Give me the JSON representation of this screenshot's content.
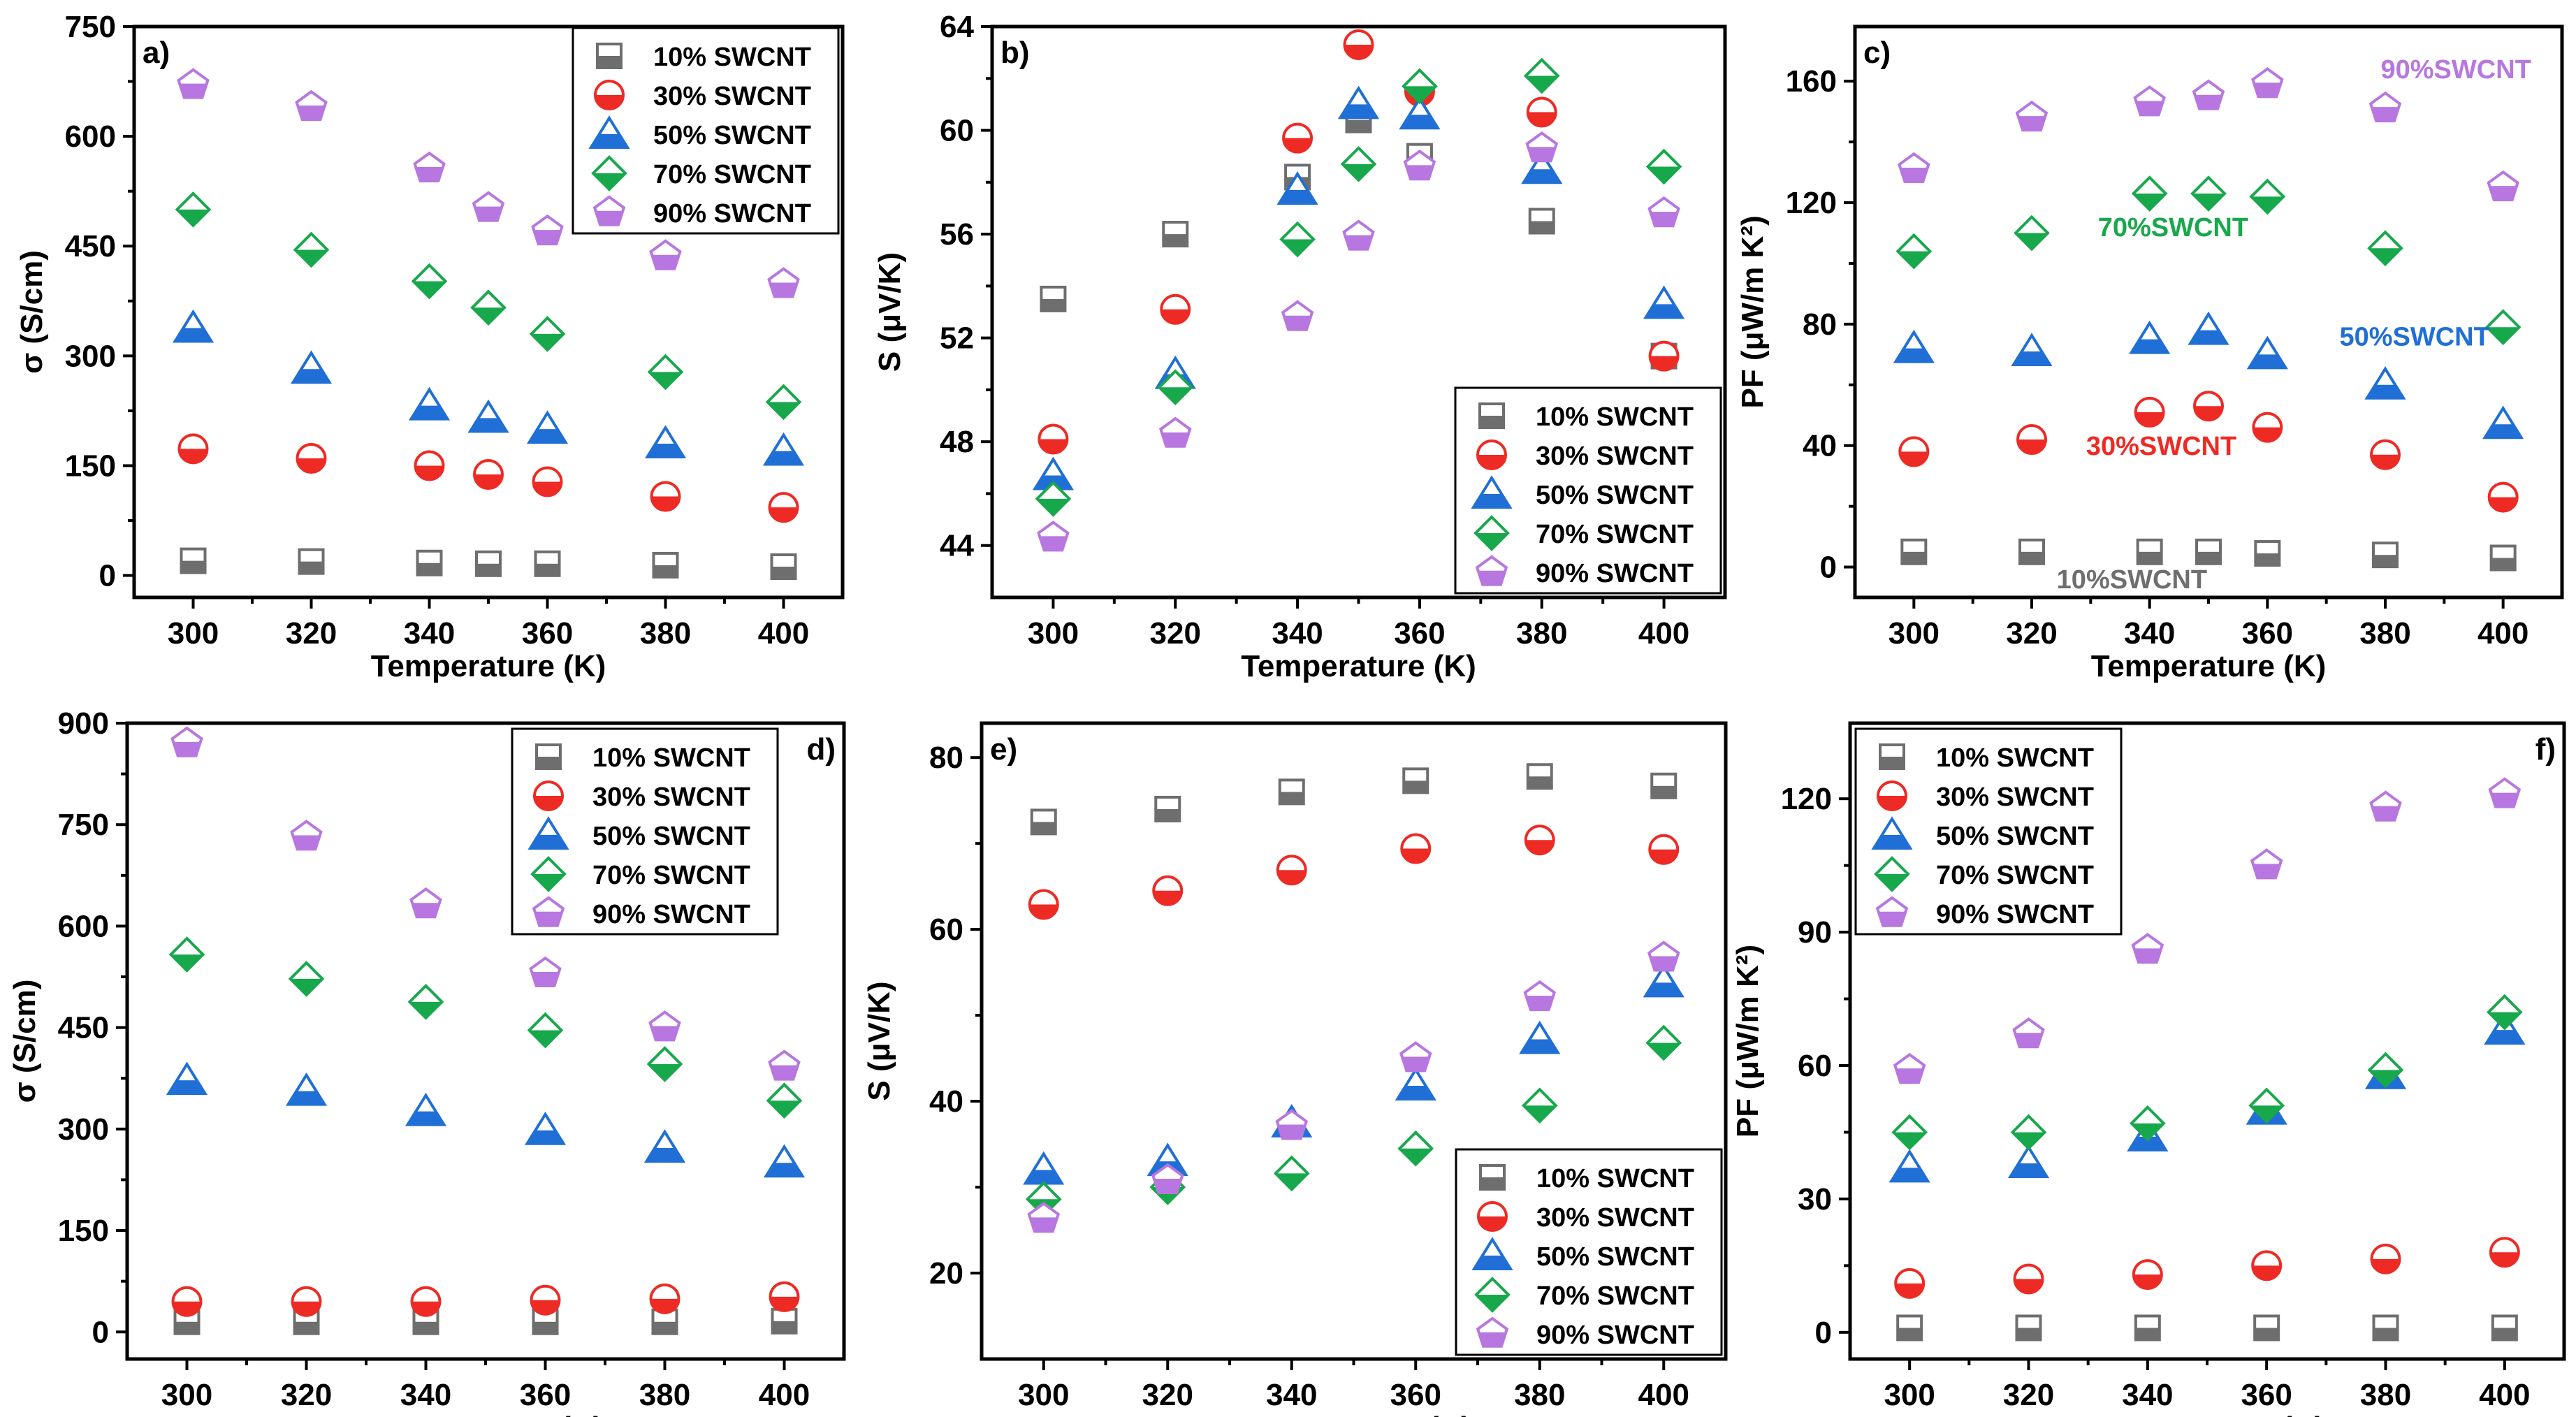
{
  "colors": {
    "s10": "#6e6e6e",
    "s30": "#ee2a24",
    "s50": "#1f6fd6",
    "s70": "#18a84c",
    "s90": "#b877e0"
  },
  "chart_data": [
    {
      "id": "a",
      "type": "scatter",
      "panel_label": "a)",
      "xlabel": "Temperature (K)",
      "ylabel": "σ (S/cm)",
      "xlim": [
        290,
        410
      ],
      "ylim": [
        -30,
        750
      ],
      "xticks": [
        300,
        320,
        340,
        360,
        380,
        400
      ],
      "yticks": [
        0,
        150,
        300,
        450,
        600,
        750
      ],
      "legend": "top-right",
      "series": [
        {
          "key": "s10",
          "name": "10% SWCNT",
          "marker": "square",
          "x": [
            300,
            320,
            340,
            350,
            360,
            380,
            400
          ],
          "y": [
            20,
            19,
            17,
            16,
            16,
            14,
            12
          ]
        },
        {
          "key": "s30",
          "name": "30% SWCNT",
          "marker": "circle",
          "x": [
            300,
            320,
            340,
            350,
            360,
            380,
            400
          ],
          "y": [
            173,
            160,
            150,
            138,
            128,
            108,
            93
          ]
        },
        {
          "key": "s50",
          "name": "50% SWCNT",
          "marker": "triangle",
          "x": [
            300,
            320,
            340,
            350,
            360,
            380,
            400
          ],
          "y": [
            338,
            282,
            232,
            215,
            200,
            180,
            170
          ]
        },
        {
          "key": "s70",
          "name": "70% SWCNT",
          "marker": "diamond",
          "x": [
            300,
            320,
            340,
            350,
            360,
            380,
            400
          ],
          "y": [
            500,
            445,
            402,
            366,
            330,
            278,
            237
          ]
        },
        {
          "key": "s90",
          "name": "90% SWCNT",
          "marker": "pentagon",
          "x": [
            300,
            320,
            340,
            350,
            360,
            380,
            400
          ],
          "y": [
            670,
            640,
            556,
            502,
            470,
            436,
            398
          ]
        }
      ]
    },
    {
      "id": "b",
      "type": "scatter",
      "panel_label": "b)",
      "xlabel": "Temperature (K)",
      "ylabel": "S (μV/K)",
      "xlim": [
        290,
        410
      ],
      "ylim": [
        42,
        64
      ],
      "xticks": [
        300,
        320,
        340,
        360,
        380,
        400
      ],
      "yticks": [
        44,
        48,
        52,
        56,
        60,
        64
      ],
      "legend": "bottom-right",
      "series": [
        {
          "key": "s10",
          "name": "10% SWCNT",
          "marker": "square",
          "x": [
            300,
            320,
            340,
            350,
            360,
            380,
            400
          ],
          "y": [
            53.5,
            56,
            58.2,
            60.4,
            59,
            56.5,
            51.3
          ]
        },
        {
          "key": "s30",
          "name": "30% SWCNT",
          "marker": "circle",
          "x": [
            300,
            320,
            340,
            350,
            360,
            380,
            400
          ],
          "y": [
            48.1,
            53.1,
            59.7,
            63.3,
            61.5,
            60.7,
            51.3
          ]
        },
        {
          "key": "s50",
          "name": "50% SWCNT",
          "marker": "triangle",
          "x": [
            300,
            320,
            340,
            350,
            360,
            380,
            400
          ],
          "y": [
            46.7,
            50.6,
            57.7,
            61,
            60.6,
            58.5,
            53.3
          ]
        },
        {
          "key": "s70",
          "name": "70% SWCNT",
          "marker": "diamond",
          "x": [
            300,
            320,
            340,
            350,
            360,
            380,
            400
          ],
          "y": [
            45.8,
            50.1,
            55.8,
            58.7,
            61.7,
            62.1,
            58.6
          ]
        },
        {
          "key": "s90",
          "name": "90% SWCNT",
          "marker": "pentagon",
          "x": [
            300,
            320,
            340,
            350,
            360,
            380,
            400
          ],
          "y": [
            44.3,
            48.3,
            52.8,
            55.9,
            58.6,
            59.3,
            56.8
          ]
        }
      ]
    },
    {
      "id": "c",
      "type": "scatter",
      "panel_label": "c)",
      "xlabel": "Temperature (K)",
      "ylabel": "PF (μW/m K²)",
      "xlim": [
        290,
        410
      ],
      "ylim": [
        -10,
        178
      ],
      "xticks": [
        300,
        320,
        340,
        360,
        380,
        400
      ],
      "yticks": [
        0,
        40,
        80,
        120,
        160
      ],
      "legend": "none",
      "annotations": [
        {
          "text": "90%SWCNT",
          "key": "s90",
          "x": 392,
          "y": 161
        },
        {
          "text": "70%SWCNT",
          "key": "s70",
          "x": 344,
          "y": 109
        },
        {
          "text": "50%SWCNT",
          "key": "s50",
          "x": 385,
          "y": 73
        },
        {
          "text": "30%SWCNT",
          "key": "s30",
          "x": 342,
          "y": 37
        },
        {
          "text": "10%SWCNT",
          "key": "s10",
          "x": 337,
          "y": -7
        }
      ],
      "series": [
        {
          "key": "s10",
          "name": "10% SWCNT",
          "marker": "square",
          "x": [
            300,
            320,
            340,
            350,
            360,
            380,
            400
          ],
          "y": [
            5,
            5,
            5,
            5,
            4.5,
            4,
            3
          ]
        },
        {
          "key": "s30",
          "name": "30% SWCNT",
          "marker": "circle",
          "x": [
            300,
            320,
            340,
            350,
            360,
            380,
            400
          ],
          "y": [
            38,
            42,
            51,
            53,
            46,
            37,
            23
          ]
        },
        {
          "key": "s50",
          "name": "50% SWCNT",
          "marker": "triangle",
          "x": [
            300,
            320,
            340,
            350,
            360,
            380,
            400
          ],
          "y": [
            72,
            71,
            75,
            78,
            70,
            60,
            47
          ]
        },
        {
          "key": "s70",
          "name": "70% SWCNT",
          "marker": "diamond",
          "x": [
            300,
            320,
            340,
            350,
            360,
            380,
            400
          ],
          "y": [
            104,
            110,
            123,
            123,
            122,
            105,
            79
          ]
        },
        {
          "key": "s90",
          "name": "90% SWCNT",
          "marker": "pentagon",
          "x": [
            300,
            320,
            340,
            350,
            360,
            380,
            400
          ],
          "y": [
            131,
            148,
            153,
            155,
            159,
            151,
            125
          ]
        }
      ]
    },
    {
      "id": "d",
      "type": "scatter",
      "panel_label": "d)",
      "xlabel": "Temperature (K)",
      "ylabel": "σ (S/cm)",
      "xlim": [
        290,
        410
      ],
      "ylim": [
        -40,
        900
      ],
      "xticks": [
        300,
        320,
        340,
        360,
        380,
        400
      ],
      "yticks": [
        0,
        150,
        300,
        450,
        600,
        750,
        900
      ],
      "legend": "top-right",
      "series": [
        {
          "key": "s10",
          "name": "10% SWCNT",
          "marker": "square",
          "x": [
            300,
            320,
            340,
            360,
            380,
            400
          ],
          "y": [
            15,
            15,
            15,
            15,
            15,
            16
          ]
        },
        {
          "key": "s30",
          "name": "30% SWCNT",
          "marker": "circle",
          "x": [
            300,
            320,
            340,
            360,
            380,
            400
          ],
          "y": [
            45,
            45,
            45,
            47,
            49,
            52
          ]
        },
        {
          "key": "s50",
          "name": "50% SWCNT",
          "marker": "triangle",
          "x": [
            300,
            320,
            340,
            360,
            380,
            400
          ],
          "y": [
            372,
            356,
            326,
            298,
            272,
            250
          ]
        },
        {
          "key": "s70",
          "name": "70% SWCNT",
          "marker": "diamond",
          "x": [
            300,
            320,
            340,
            360,
            380,
            400
          ],
          "y": [
            558,
            522,
            488,
            446,
            396,
            342
          ]
        },
        {
          "key": "s90",
          "name": "90% SWCNT",
          "marker": "pentagon",
          "x": [
            300,
            320,
            340,
            360,
            380,
            400
          ],
          "y": [
            870,
            732,
            632,
            530,
            450,
            392
          ]
        }
      ]
    },
    {
      "id": "e",
      "type": "scatter",
      "panel_label": "e)",
      "xlabel": "Temperature (K)",
      "ylabel": "S (μV/K)",
      "xlim": [
        290,
        410
      ],
      "ylim": [
        10,
        84
      ],
      "xticks": [
        300,
        320,
        340,
        360,
        380,
        400
      ],
      "yticks": [
        20,
        40,
        60,
        80
      ],
      "legend": "bottom-right",
      "series": [
        {
          "key": "s10",
          "name": "10% SWCNT",
          "marker": "square",
          "x": [
            300,
            320,
            340,
            360,
            380,
            400
          ],
          "y": [
            72.5,
            74,
            76,
            77.3,
            77.8,
            76.7
          ]
        },
        {
          "key": "s30",
          "name": "30% SWCNT",
          "marker": "circle",
          "x": [
            300,
            320,
            340,
            360,
            380,
            400
          ],
          "y": [
            62.9,
            64.5,
            66.9,
            69.4,
            70.4,
            69.3
          ]
        },
        {
          "key": "s50",
          "name": "50% SWCNT",
          "marker": "triangle",
          "x": [
            300,
            320,
            340,
            360,
            380,
            400
          ],
          "y": [
            32,
            33,
            37.5,
            41.8,
            47.2,
            53.8
          ]
        },
        {
          "key": "s70",
          "name": "70% SWCNT",
          "marker": "diamond",
          "x": [
            300,
            320,
            340,
            360,
            380,
            400
          ],
          "y": [
            28.6,
            30,
            31.6,
            34.5,
            39.5,
            46.8
          ]
        },
        {
          "key": "s90",
          "name": "90% SWCNT",
          "marker": "pentagon",
          "x": [
            300,
            320,
            340,
            360,
            380,
            400
          ],
          "y": [
            26.3,
            30.8,
            37.1,
            45,
            52.1,
            56.7
          ]
        }
      ]
    },
    {
      "id": "f",
      "type": "scatter",
      "panel_label": "f)",
      "xlabel": "Temperature (K)",
      "ylabel": "PF (μW/m K²)",
      "xlim": [
        290,
        410
      ],
      "ylim": [
        -6,
        137
      ],
      "xticks": [
        300,
        320,
        340,
        360,
        380,
        400
      ],
      "yticks": [
        0,
        30,
        60,
        90,
        120
      ],
      "legend": "top-left",
      "series": [
        {
          "key": "s10",
          "name": "10% SWCNT",
          "marker": "square",
          "x": [
            300,
            320,
            340,
            360,
            380,
            400
          ],
          "y": [
            1,
            1,
            1,
            1,
            1,
            1
          ]
        },
        {
          "key": "s30",
          "name": "30% SWCNT",
          "marker": "circle",
          "x": [
            300,
            320,
            340,
            360,
            380,
            400
          ],
          "y": [
            11,
            12,
            13,
            15,
            16.5,
            18
          ]
        },
        {
          "key": "s50",
          "name": "50% SWCNT",
          "marker": "triangle",
          "x": [
            300,
            320,
            340,
            360,
            380,
            400
          ],
          "y": [
            37,
            38,
            44,
            50,
            58,
            68
          ]
        },
        {
          "key": "s70",
          "name": "70% SWCNT",
          "marker": "diamond",
          "x": [
            300,
            320,
            340,
            360,
            380,
            400
          ],
          "y": [
            45,
            45,
            47,
            51,
            59,
            72
          ]
        },
        {
          "key": "s90",
          "name": "90% SWCNT",
          "marker": "pentagon",
          "x": [
            300,
            320,
            340,
            360,
            380,
            400
          ],
          "y": [
            59,
            67,
            86,
            105,
            118,
            121
          ]
        }
      ]
    }
  ]
}
